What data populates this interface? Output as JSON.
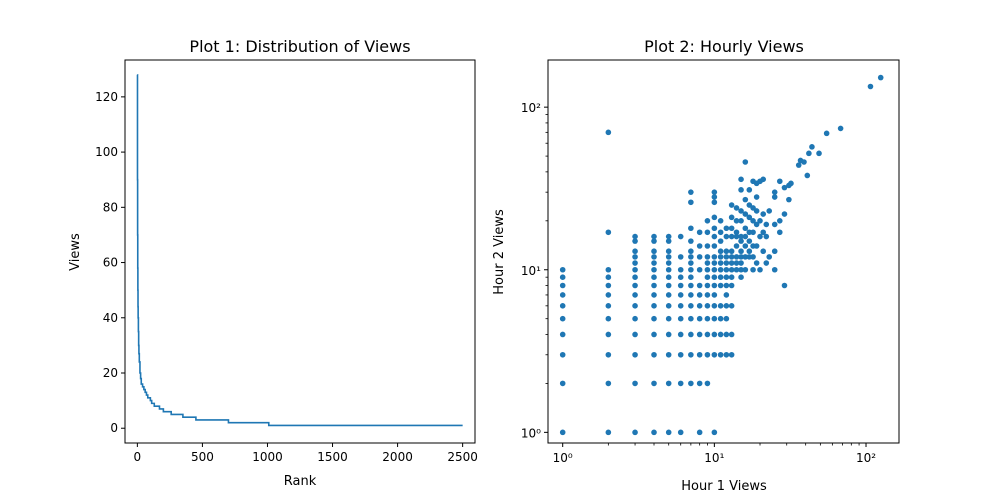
{
  "chart_data": [
    {
      "type": "line",
      "title": "Plot 1: Distribution of Views",
      "xlabel": "Rank",
      "ylabel": "Views",
      "xlim": [
        -95,
        2595
      ],
      "ylim": [
        -5.35,
        133.35
      ],
      "xticks": [
        0,
        500,
        1000,
        1500,
        2000,
        2500
      ],
      "yticks": [
        0,
        20,
        40,
        60,
        80,
        100,
        120
      ],
      "grid": false,
      "series": [
        {
          "x": [
            0,
            1,
            2,
            3,
            4,
            5,
            6,
            8,
            10,
            12,
            15,
            20,
            25,
            30,
            40,
            50,
            60,
            70,
            80,
            90,
            100,
            110,
            120,
            130,
            150,
            170,
            200,
            230,
            260,
            300,
            350,
            400,
            450,
            500,
            580,
            700,
            800,
            900,
            1000,
            1010,
            1200,
            1500,
            2000,
            2500
          ],
          "y": [
            128,
            90,
            70,
            58,
            50,
            44,
            40,
            35,
            30,
            27,
            24,
            20,
            18,
            16,
            15,
            14,
            13,
            12,
            11,
            11,
            10,
            9,
            9,
            8,
            8,
            7,
            6,
            6,
            5,
            5,
            4,
            4,
            3,
            3,
            3,
            2,
            2,
            2,
            2,
            1,
            1,
            1,
            1,
            1
          ]
        }
      ]
    },
    {
      "type": "scatter",
      "title": "Plot 2: Hourly Views",
      "xlabel": "Hour 1 Views",
      "ylabel": "Hour 2 Views",
      "xscale": "log",
      "yscale": "log",
      "xlim": [
        0.8,
        165
      ],
      "ylim": [
        0.86,
        195
      ],
      "xticks": [
        1,
        10,
        100
      ],
      "yticks": [
        1,
        10,
        100
      ],
      "xtick_labels": [
        "10⁰",
        "10¹",
        "10²"
      ],
      "ytick_labels": [
        "10⁰",
        "10¹",
        "10²"
      ],
      "grid": false,
      "points": [
        [
          1,
          1
        ],
        [
          1,
          2
        ],
        [
          1,
          3
        ],
        [
          1,
          4
        ],
        [
          1,
          5
        ],
        [
          1,
          6
        ],
        [
          1,
          7
        ],
        [
          1,
          8
        ],
        [
          1,
          9
        ],
        [
          1,
          10
        ],
        [
          2,
          1
        ],
        [
          2,
          2
        ],
        [
          2,
          3
        ],
        [
          2,
          4
        ],
        [
          2,
          5
        ],
        [
          2,
          6
        ],
        [
          2,
          7
        ],
        [
          2,
          8
        ],
        [
          2,
          9
        ],
        [
          2,
          10
        ],
        [
          2,
          17
        ],
        [
          2,
          70
        ],
        [
          3,
          1
        ],
        [
          3,
          2
        ],
        [
          3,
          3
        ],
        [
          3,
          4
        ],
        [
          3,
          5
        ],
        [
          3,
          6
        ],
        [
          3,
          7
        ],
        [
          3,
          8
        ],
        [
          3,
          9
        ],
        [
          3,
          10
        ],
        [
          3,
          11
        ],
        [
          3,
          12
        ],
        [
          3,
          13
        ],
        [
          3,
          15
        ],
        [
          3,
          16
        ],
        [
          4,
          1
        ],
        [
          4,
          2
        ],
        [
          4,
          3
        ],
        [
          4,
          4
        ],
        [
          4,
          5
        ],
        [
          4,
          6
        ],
        [
          4,
          7
        ],
        [
          4,
          8
        ],
        [
          4,
          9
        ],
        [
          4,
          10
        ],
        [
          4,
          11
        ],
        [
          4,
          12
        ],
        [
          4,
          13
        ],
        [
          4,
          15
        ],
        [
          4,
          16
        ],
        [
          5,
          1
        ],
        [
          5,
          2
        ],
        [
          5,
          3
        ],
        [
          5,
          4
        ],
        [
          5,
          5
        ],
        [
          5,
          6
        ],
        [
          5,
          7
        ],
        [
          5,
          8
        ],
        [
          5,
          9
        ],
        [
          5,
          10
        ],
        [
          5,
          11
        ],
        [
          5,
          12
        ],
        [
          5,
          13
        ],
        [
          5,
          15
        ],
        [
          5,
          16
        ],
        [
          6,
          1
        ],
        [
          6,
          2
        ],
        [
          6,
          3
        ],
        [
          6,
          4
        ],
        [
          6,
          5
        ],
        [
          6,
          6
        ],
        [
          6,
          7
        ],
        [
          6,
          8
        ],
        [
          6,
          9
        ],
        [
          6,
          10
        ],
        [
          6,
          12
        ],
        [
          6,
          16
        ],
        [
          7,
          2
        ],
        [
          7,
          3
        ],
        [
          7,
          4
        ],
        [
          7,
          5
        ],
        [
          7,
          6
        ],
        [
          7,
          7
        ],
        [
          7,
          8
        ],
        [
          7,
          9
        ],
        [
          7,
          10
        ],
        [
          7,
          11
        ],
        [
          7,
          12
        ],
        [
          7,
          13
        ],
        [
          7,
          15
        ],
        [
          7,
          18
        ],
        [
          7,
          26
        ],
        [
          7,
          30
        ],
        [
          8,
          1
        ],
        [
          8,
          2
        ],
        [
          8,
          3
        ],
        [
          8,
          4
        ],
        [
          8,
          5
        ],
        [
          8,
          6
        ],
        [
          8,
          7
        ],
        [
          8,
          8
        ],
        [
          8,
          10
        ],
        [
          8,
          12
        ],
        [
          8,
          14
        ],
        [
          8,
          17
        ],
        [
          9,
          2
        ],
        [
          9,
          3
        ],
        [
          9,
          4
        ],
        [
          9,
          5
        ],
        [
          9,
          6
        ],
        [
          9,
          7
        ],
        [
          9,
          8
        ],
        [
          9,
          9
        ],
        [
          9,
          10
        ],
        [
          9,
          11
        ],
        [
          9,
          12
        ],
        [
          9,
          14
        ],
        [
          9,
          17
        ],
        [
          9,
          20
        ],
        [
          10,
          1
        ],
        [
          10,
          3
        ],
        [
          10,
          4
        ],
        [
          10,
          5
        ],
        [
          10,
          6
        ],
        [
          10,
          7
        ],
        [
          10,
          8
        ],
        [
          10,
          9
        ],
        [
          10,
          10
        ],
        [
          10,
          11
        ],
        [
          10,
          12
        ],
        [
          10,
          14
        ],
        [
          10,
          16
        ],
        [
          10,
          18
        ],
        [
          10,
          21
        ],
        [
          10,
          26
        ],
        [
          10,
          28
        ],
        [
          10,
          30
        ],
        [
          11,
          3
        ],
        [
          11,
          4
        ],
        [
          11,
          5
        ],
        [
          11,
          6
        ],
        [
          11,
          8
        ],
        [
          11,
          9
        ],
        [
          11,
          10
        ],
        [
          11,
          11
        ],
        [
          11,
          12
        ],
        [
          11,
          13
        ],
        [
          11,
          15
        ],
        [
          11,
          17
        ],
        [
          11,
          20
        ],
        [
          12,
          3
        ],
        [
          12,
          4
        ],
        [
          12,
          5
        ],
        [
          12,
          6
        ],
        [
          12,
          7
        ],
        [
          12,
          8
        ],
        [
          12,
          9
        ],
        [
          12,
          10
        ],
        [
          12,
          11
        ],
        [
          12,
          12
        ],
        [
          12,
          13
        ],
        [
          12,
          16
        ],
        [
          12,
          18
        ],
        [
          13,
          3
        ],
        [
          13,
          4
        ],
        [
          13,
          6
        ],
        [
          13,
          8
        ],
        [
          13,
          9
        ],
        [
          13,
          10
        ],
        [
          13,
          11
        ],
        [
          13,
          12
        ],
        [
          13,
          13
        ],
        [
          13,
          16
        ],
        [
          13,
          18
        ],
        [
          13,
          21
        ],
        [
          13,
          25
        ],
        [
          14,
          10
        ],
        [
          14,
          11
        ],
        [
          14,
          12
        ],
        [
          14,
          14
        ],
        [
          14,
          16
        ],
        [
          14,
          17
        ],
        [
          14,
          20
        ],
        [
          14,
          24
        ],
        [
          15,
          9
        ],
        [
          15,
          10
        ],
        [
          15,
          11
        ],
        [
          15,
          12
        ],
        [
          15,
          13
        ],
        [
          15,
          15
        ],
        [
          15,
          16
        ],
        [
          15,
          20
        ],
        [
          15,
          23
        ],
        [
          15,
          31
        ],
        [
          15,
          36
        ],
        [
          16,
          10
        ],
        [
          16,
          12
        ],
        [
          16,
          14
        ],
        [
          16,
          16
        ],
        [
          16,
          18
        ],
        [
          16,
          22
        ],
        [
          16,
          27
        ],
        [
          16,
          46
        ],
        [
          17,
          12
        ],
        [
          17,
          13
        ],
        [
          17,
          15
        ],
        [
          17,
          17
        ],
        [
          17,
          21
        ],
        [
          17,
          25
        ],
        [
          17,
          31
        ],
        [
          18,
          10
        ],
        [
          18,
          12
        ],
        [
          18,
          14
        ],
        [
          18,
          17
        ],
        [
          18,
          20
        ],
        [
          18,
          24
        ],
        [
          18,
          35
        ],
        [
          19,
          11
        ],
        [
          19,
          14
        ],
        [
          19,
          19
        ],
        [
          19,
          23
        ],
        [
          19,
          28
        ],
        [
          19,
          34
        ],
        [
          20,
          10
        ],
        [
          20,
          16
        ],
        [
          20,
          20
        ],
        [
          20,
          35
        ],
        [
          21,
          13
        ],
        [
          21,
          17
        ],
        [
          21,
          22
        ],
        [
          21,
          36
        ],
        [
          22,
          11
        ],
        [
          22,
          16
        ],
        [
          22,
          19
        ],
        [
          23,
          12
        ],
        [
          23,
          23
        ],
        [
          25,
          10
        ],
        [
          25,
          13
        ],
        [
          25,
          19
        ],
        [
          25,
          28
        ],
        [
          25,
          30
        ],
        [
          27,
          17
        ],
        [
          27,
          20
        ],
        [
          27,
          35
        ],
        [
          29,
          8
        ],
        [
          29,
          22
        ],
        [
          29,
          32
        ],
        [
          31,
          27
        ],
        [
          31,
          33
        ],
        [
          32,
          34
        ],
        [
          36,
          44
        ],
        [
          37,
          47
        ],
        [
          39,
          46
        ],
        [
          41,
          38
        ],
        [
          42,
          52
        ],
        [
          44,
          57
        ],
        [
          49,
          52
        ],
        [
          55,
          69
        ],
        [
          68,
          74
        ],
        [
          107,
          134
        ],
        [
          125,
          152
        ]
      ]
    }
  ]
}
